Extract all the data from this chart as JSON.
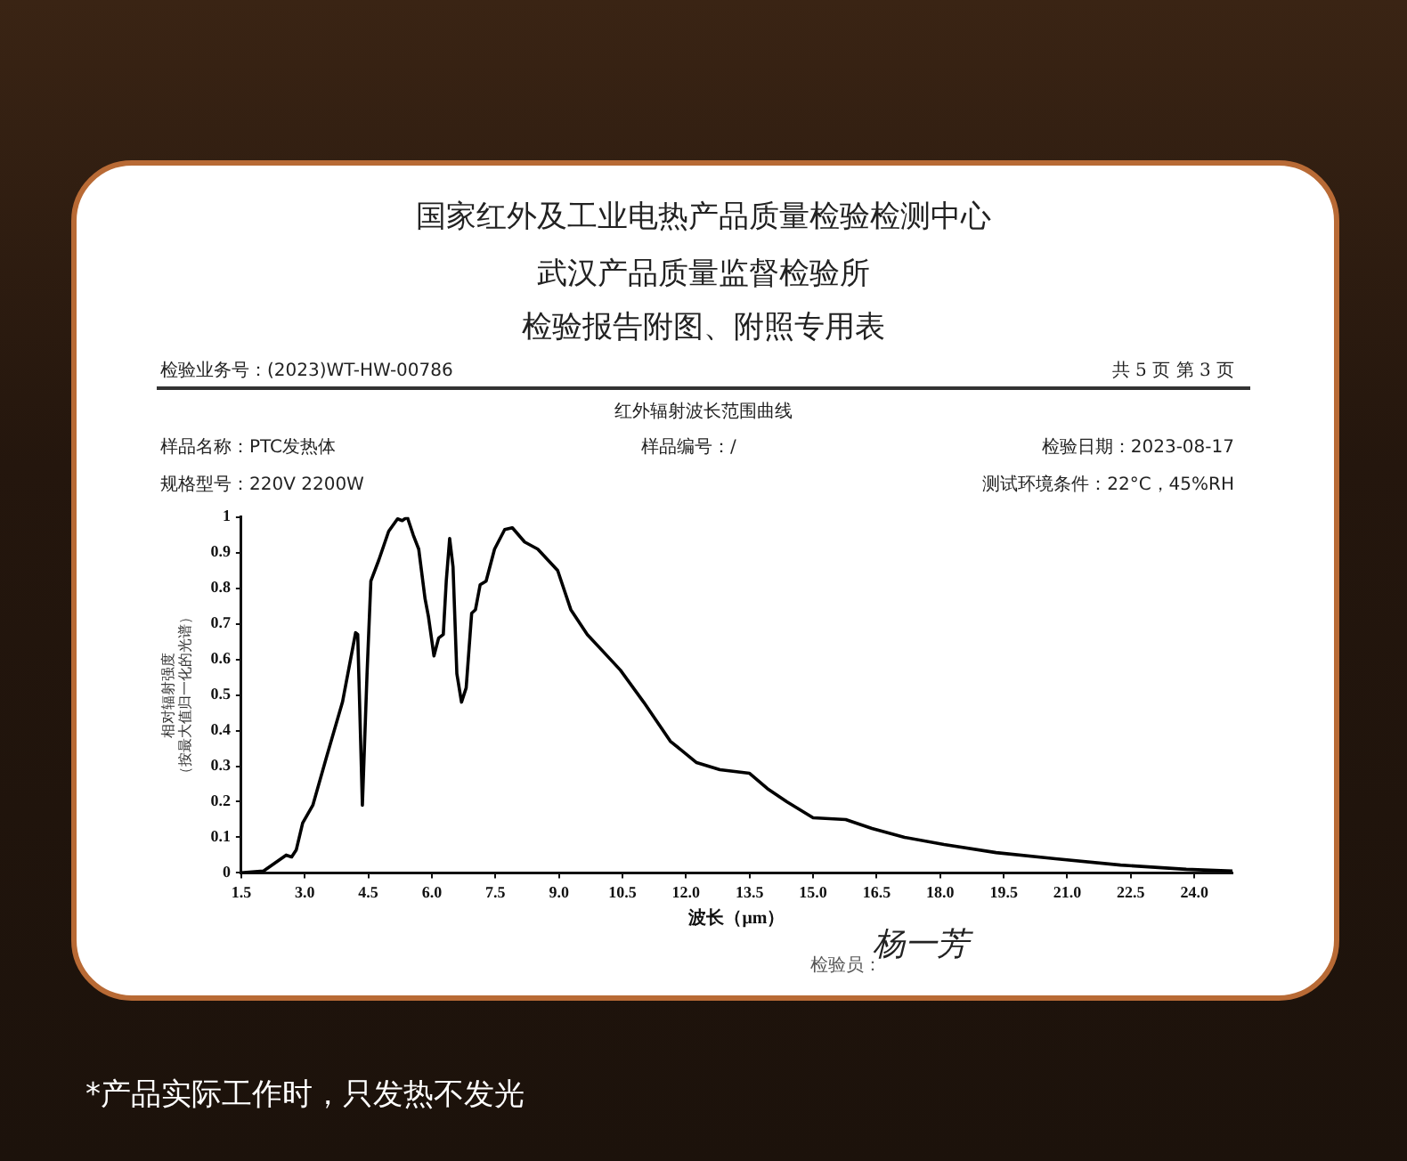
{
  "chart_data": {
    "type": "line",
    "title": "国家红外及工业电热产品质量检验检测中心",
    "subtitle": "武汉产品质量监督检验所",
    "annotations": [
      "检验报告附图、附照专用表",
      "检验业务号：(2023)WT-HW-00786",
      "共 5 页 第 3 页",
      "红外辐射波长范围曲线",
      "样品名称：PTC发热体",
      "样品编号：/",
      "检验日期：2023-08-17",
      "规格型号：220V 2200W",
      "测试环境条件：22°C，45%RH",
      "检验员：",
      "杨一芳",
      "*产品实际工作时，只发热不发光"
    ],
    "xlabel": "波长（μm）",
    "ylabel": "相对辐射强度（按最大值归一化的光谱）",
    "x": [
      1.5,
      2.02,
      2.56,
      2.69,
      2.8,
      2.95,
      3.19,
      3.5,
      3.89,
      4.2,
      4.25,
      4.36,
      4.47,
      4.56,
      4.75,
      4.98,
      5.19,
      5.3,
      5.42,
      5.56,
      5.69,
      5.84,
      5.92,
      6.05,
      6.16,
      6.27,
      6.34,
      6.42,
      6.5,
      6.59,
      6.7,
      6.81,
      6.94,
      7.03,
      7.14,
      7.28,
      7.48,
      7.72,
      7.9,
      8.19,
      8.5,
      8.97,
      9.28,
      9.67,
      10.06,
      10.45,
      11.0,
      11.63,
      12.25,
      12.8,
      13.5,
      13.92,
      14.38,
      15.0,
      15.77,
      16.39,
      17.16,
      18.09,
      19.32,
      20.72,
      22.26,
      23.81,
      24.9
    ],
    "series": [
      {
        "color": "#000000",
        "values": [
          0,
          0.005,
          0.05,
          0.045,
          0.065,
          0.14,
          0.19,
          0.32,
          0.48,
          0.675,
          0.67,
          0.19,
          0.56,
          0.82,
          0.88,
          0.96,
          0.995,
          0.99,
          1.0,
          0.95,
          0.91,
          0.77,
          0.72,
          0.61,
          0.66,
          0.67,
          0.82,
          0.94,
          0.86,
          0.56,
          0.48,
          0.52,
          0.73,
          0.74,
          0.81,
          0.82,
          0.91,
          0.965,
          0.97,
          0.93,
          0.91,
          0.85,
          0.74,
          0.67,
          0.62,
          0.57,
          0.48,
          0.37,
          0.31,
          0.29,
          0.28,
          0.237,
          0.2,
          0.155,
          0.15,
          0.125,
          0.1,
          0.08,
          0.057,
          0.04,
          0.022,
          0.01,
          0.005
        ]
      }
    ],
    "xlim": [
      1.5,
      24.9
    ],
    "xticks": [
      1.5,
      {
        "value": 3,
        "label": "3.0"
      },
      4.5,
      {
        "value": 6,
        "label": "6.0"
      },
      7.5,
      {
        "value": 9,
        "label": "9.0"
      },
      10.5,
      {
        "value": 12,
        "label": "12.0"
      },
      13.5,
      {
        "value": 15,
        "label": "15.0"
      },
      16.5,
      {
        "value": 18,
        "label": "18.0"
      },
      19.5,
      {
        "value": 21,
        "label": "21.0"
      },
      22.5,
      {
        "value": 24,
        "label": "24.0"
      }
    ],
    "ylim": [
      0,
      1
    ],
    "yticks": [
      0,
      0.1,
      0.2,
      0.3,
      0.4,
      0.5,
      0.6,
      0.7,
      0.8,
      0.9,
      1
    ],
    "grid": false,
    "legend": false,
    "marker": "none",
    "line_style": "solid"
  }
}
